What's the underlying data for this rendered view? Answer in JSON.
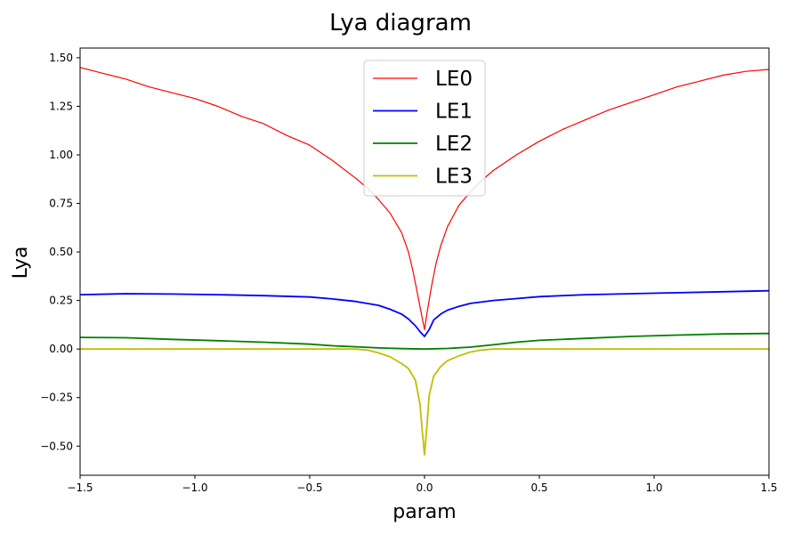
{
  "chart_data": {
    "type": "line",
    "title": "Lya diagram",
    "xlabel": "param",
    "ylabel": "Lya",
    "xlim": [
      -1.5,
      1.5
    ],
    "ylim": [
      -0.65,
      1.55
    ],
    "xticks": [
      -1.5,
      -1.0,
      -0.5,
      0.0,
      0.5,
      1.0,
      1.5
    ],
    "xtick_labels": [
      "−1.5",
      "−1.0",
      "−0.5",
      "0.0",
      "0.5",
      "1.0",
      "1.5"
    ],
    "yticks": [
      -0.5,
      -0.25,
      0.0,
      0.25,
      0.5,
      0.75,
      1.0,
      1.25,
      1.5
    ],
    "ytick_labels": [
      "−0.50",
      "−0.25",
      "0.00",
      "0.25",
      "0.50",
      "0.75",
      "1.00",
      "1.25",
      "1.50"
    ],
    "grid": false,
    "legend_position": "top-center",
    "series": [
      {
        "name": "LE0",
        "color": "#ff0000",
        "x": [
          -1.5,
          -1.4,
          -1.3,
          -1.2,
          -1.1,
          -1.0,
          -0.9,
          -0.8,
          -0.7,
          -0.6,
          -0.5,
          -0.4,
          -0.3,
          -0.25,
          -0.2,
          -0.15,
          -0.1,
          -0.07,
          -0.05,
          -0.03,
          -0.01,
          0.0,
          0.01,
          0.03,
          0.05,
          0.07,
          0.1,
          0.15,
          0.2,
          0.25,
          0.3,
          0.4,
          0.5,
          0.6,
          0.7,
          0.8,
          0.9,
          1.0,
          1.1,
          1.2,
          1.3,
          1.4,
          1.5
        ],
        "y": [
          1.45,
          1.42,
          1.39,
          1.35,
          1.32,
          1.29,
          1.25,
          1.2,
          1.16,
          1.1,
          1.05,
          0.97,
          0.88,
          0.83,
          0.77,
          0.7,
          0.6,
          0.5,
          0.4,
          0.28,
          0.16,
          0.1,
          0.18,
          0.32,
          0.44,
          0.53,
          0.63,
          0.74,
          0.81,
          0.87,
          0.92,
          1.0,
          1.07,
          1.13,
          1.18,
          1.23,
          1.27,
          1.31,
          1.35,
          1.38,
          1.41,
          1.43,
          1.44
        ]
      },
      {
        "name": "LE1",
        "color": "#0000ff",
        "x": [
          -1.5,
          -1.3,
          -1.1,
          -0.9,
          -0.7,
          -0.5,
          -0.4,
          -0.3,
          -0.2,
          -0.15,
          -0.1,
          -0.07,
          -0.04,
          -0.02,
          0.0,
          0.02,
          0.04,
          0.07,
          0.1,
          0.15,
          0.2,
          0.3,
          0.4,
          0.5,
          0.7,
          0.9,
          1.1,
          1.3,
          1.5
        ],
        "y": [
          0.28,
          0.285,
          0.283,
          0.28,
          0.275,
          0.268,
          0.258,
          0.245,
          0.225,
          0.205,
          0.18,
          0.155,
          0.12,
          0.09,
          0.065,
          0.1,
          0.15,
          0.18,
          0.2,
          0.22,
          0.235,
          0.25,
          0.26,
          0.27,
          0.28,
          0.285,
          0.29,
          0.295,
          0.3
        ]
      },
      {
        "name": "LE2",
        "color": "#008000",
        "x": [
          -1.5,
          -1.3,
          -1.1,
          -0.9,
          -0.7,
          -0.5,
          -0.4,
          -0.3,
          -0.2,
          -0.1,
          0.0,
          0.1,
          0.2,
          0.3,
          0.4,
          0.5,
          0.7,
          0.9,
          1.1,
          1.3,
          1.5
        ],
        "y": [
          0.06,
          0.058,
          0.05,
          0.043,
          0.035,
          0.025,
          0.017,
          0.012,
          0.006,
          0.002,
          0.0,
          0.003,
          0.01,
          0.022,
          0.035,
          0.045,
          0.055,
          0.065,
          0.072,
          0.078,
          0.08
        ]
      },
      {
        "name": "LE3",
        "color": "#bfbf00",
        "x": [
          -1.5,
          -0.3,
          -0.25,
          -0.2,
          -0.15,
          -0.1,
          -0.07,
          -0.04,
          -0.02,
          -0.01,
          0.0,
          0.01,
          0.02,
          0.04,
          0.07,
          0.1,
          0.15,
          0.2,
          0.25,
          0.3,
          1.5
        ],
        "y": [
          0.0,
          0.0,
          -0.005,
          -0.02,
          -0.04,
          -0.075,
          -0.1,
          -0.16,
          -0.28,
          -0.42,
          -0.545,
          -0.4,
          -0.24,
          -0.14,
          -0.09,
          -0.06,
          -0.035,
          -0.015,
          -0.005,
          0.0,
          0.0
        ]
      }
    ]
  }
}
